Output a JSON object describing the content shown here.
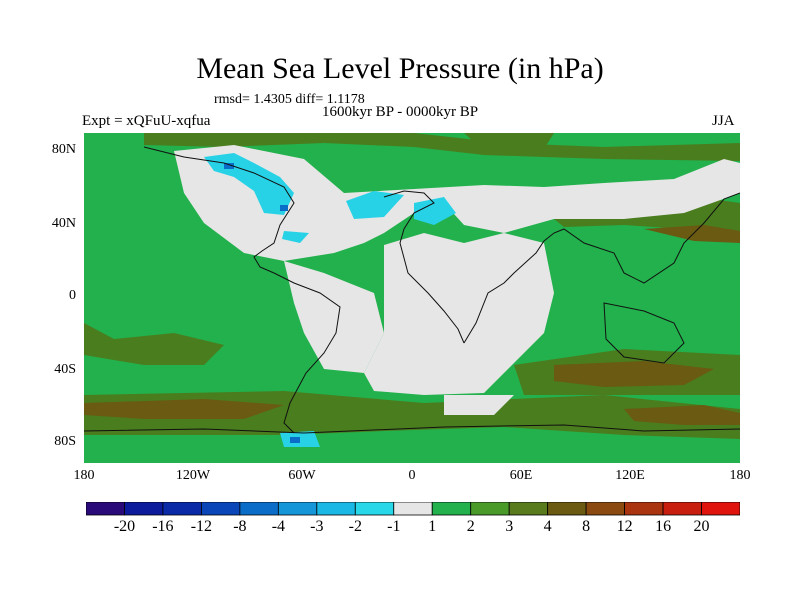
{
  "title": "Mean Sea Level Pressure (in hPa)",
  "stats": "rmsd= 1.4305 diff= 1.1178",
  "period": "1600kyr BP - 0000kyr BP",
  "experiment": "Expt = xQFuU-xqfua",
  "season": "JJA",
  "map": {
    "lon_ticks": [
      "180",
      "120W",
      "60W",
      "0",
      "60E",
      "120E",
      "180"
    ],
    "lat_ticks": [
      "80N",
      "40N",
      "0",
      "40S",
      "80S"
    ],
    "colors": {
      "ocean_base": "#22b14c",
      "land_low": "#e8e8e8",
      "mid_olive": "#4a7d1e",
      "high_brown": "#7a5a10",
      "cyan": "#28d2e6"
    }
  },
  "colorbar": {
    "labels": [
      "-20",
      "-16",
      "-12",
      "-8",
      "-4",
      "-3",
      "-2",
      "-1",
      "1",
      "2",
      "3",
      "4",
      "8",
      "12",
      "16",
      "20"
    ],
    "colors": [
      "#2a0a78",
      "#0c1a9c",
      "#0a2aa8",
      "#0a46b8",
      "#0a6ec8",
      "#1496d8",
      "#1ab8e4",
      "#28d8e8",
      "#e6e6e6",
      "#22b14c",
      "#4a9a2a",
      "#5a7a1e",
      "#6a5a12",
      "#8a4a10",
      "#aa3410",
      "#c81e10",
      "#e0140c"
    ]
  }
}
